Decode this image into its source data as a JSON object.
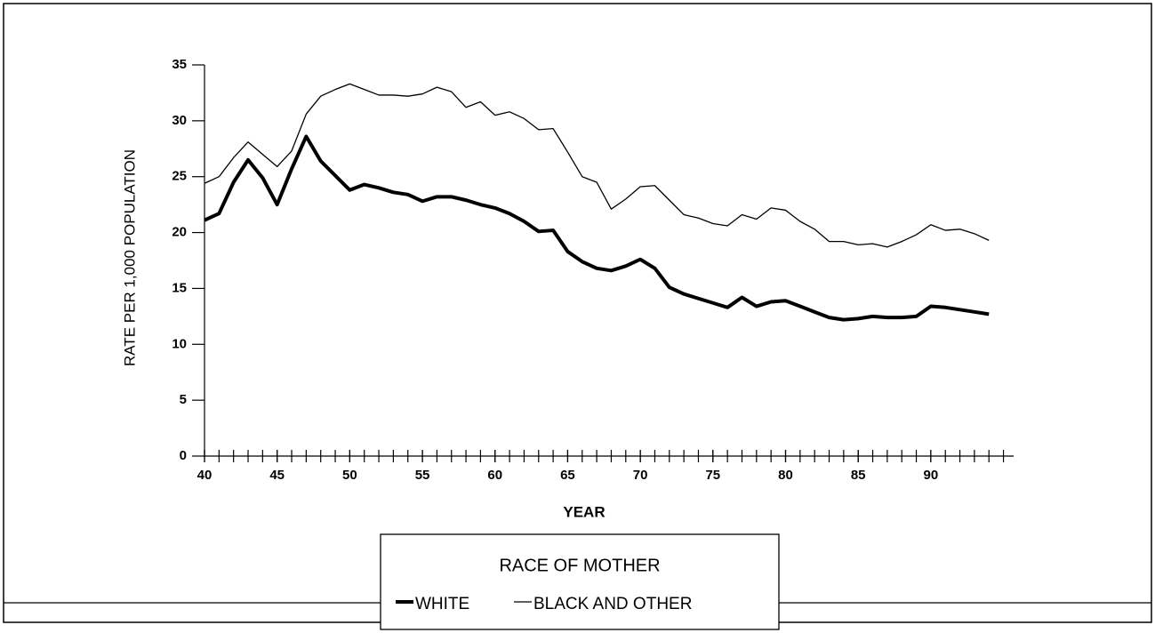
{
  "chart_data": {
    "type": "line",
    "y_label": "RATE PER 1,000 POPULATION",
    "x_label": "YEAR",
    "legend_title": "RACE OF MOTHER",
    "x": [
      40,
      41,
      42,
      43,
      44,
      45,
      46,
      47,
      48,
      49,
      50,
      51,
      52,
      53,
      54,
      55,
      56,
      57,
      58,
      59,
      60,
      61,
      62,
      63,
      64,
      65,
      66,
      67,
      68,
      69,
      70,
      71,
      72,
      73,
      74,
      75,
      76,
      77,
      78,
      79,
      80,
      81,
      82,
      83,
      84,
      85,
      86,
      87,
      88,
      89,
      90,
      91,
      92,
      93,
      94
    ],
    "series": [
      {
        "name": "WHITE",
        "color": "#000000",
        "line_width": 4,
        "values": [
          21.1,
          21.7,
          24.5,
          26.5,
          24.9,
          22.5,
          25.7,
          28.6,
          26.4,
          25.1,
          23.8,
          24.3,
          24.0,
          23.6,
          23.4,
          22.8,
          23.2,
          23.2,
          22.9,
          22.5,
          22.2,
          21.7,
          21.0,
          20.1,
          20.2,
          18.3,
          17.4,
          16.8,
          16.6,
          17.0,
          17.6,
          16.8,
          15.1,
          14.5,
          14.1,
          13.7,
          13.3,
          14.2,
          13.4,
          13.8,
          13.9,
          13.4,
          12.9,
          12.4,
          12.2,
          12.3,
          12.5,
          12.4,
          12.4,
          12.5,
          13.4,
          13.3,
          13.1,
          12.9,
          12.7
        ]
      },
      {
        "name": "BLACK AND OTHER",
        "color": "#000000",
        "line_width": 1.3,
        "values": [
          24.4,
          25.0,
          26.7,
          28.1,
          27.0,
          25.9,
          27.3,
          30.6,
          32.2,
          32.8,
          33.3,
          32.8,
          32.3,
          32.3,
          32.2,
          32.4,
          33.0,
          32.6,
          31.2,
          31.7,
          30.5,
          30.8,
          30.2,
          29.2,
          29.3,
          27.2,
          25.0,
          24.5,
          22.1,
          23.0,
          24.1,
          24.2,
          22.9,
          21.6,
          21.3,
          20.8,
          20.6,
          21.6,
          21.2,
          22.2,
          22.0,
          21.0,
          20.3,
          19.2,
          19.2,
          18.9,
          19.0,
          18.7,
          19.2,
          19.8,
          20.7,
          20.2,
          20.3,
          19.9,
          19.3
        ]
      }
    ],
    "xlim": [
      40,
      95.7
    ],
    "xticks": [
      40,
      45,
      50,
      55,
      60,
      65,
      70,
      75,
      80,
      85,
      90
    ],
    "xminorticks": [
      40,
      41,
      42,
      43,
      44,
      45,
      46,
      47,
      48,
      49,
      50,
      51,
      52,
      53,
      54,
      55,
      56,
      57,
      58,
      59,
      60,
      61,
      62,
      63,
      64,
      65,
      66,
      67,
      68,
      69,
      70,
      71,
      72,
      73,
      74,
      75,
      76,
      77,
      78,
      79,
      80,
      81,
      82,
      83,
      84,
      85,
      86,
      87,
      88,
      89,
      90,
      91,
      92,
      93,
      94,
      95
    ],
    "ylim": [
      0,
      35
    ],
    "yticks": [
      0,
      5,
      10,
      15,
      20,
      25,
      30,
      35
    ],
    "grid": false
  }
}
